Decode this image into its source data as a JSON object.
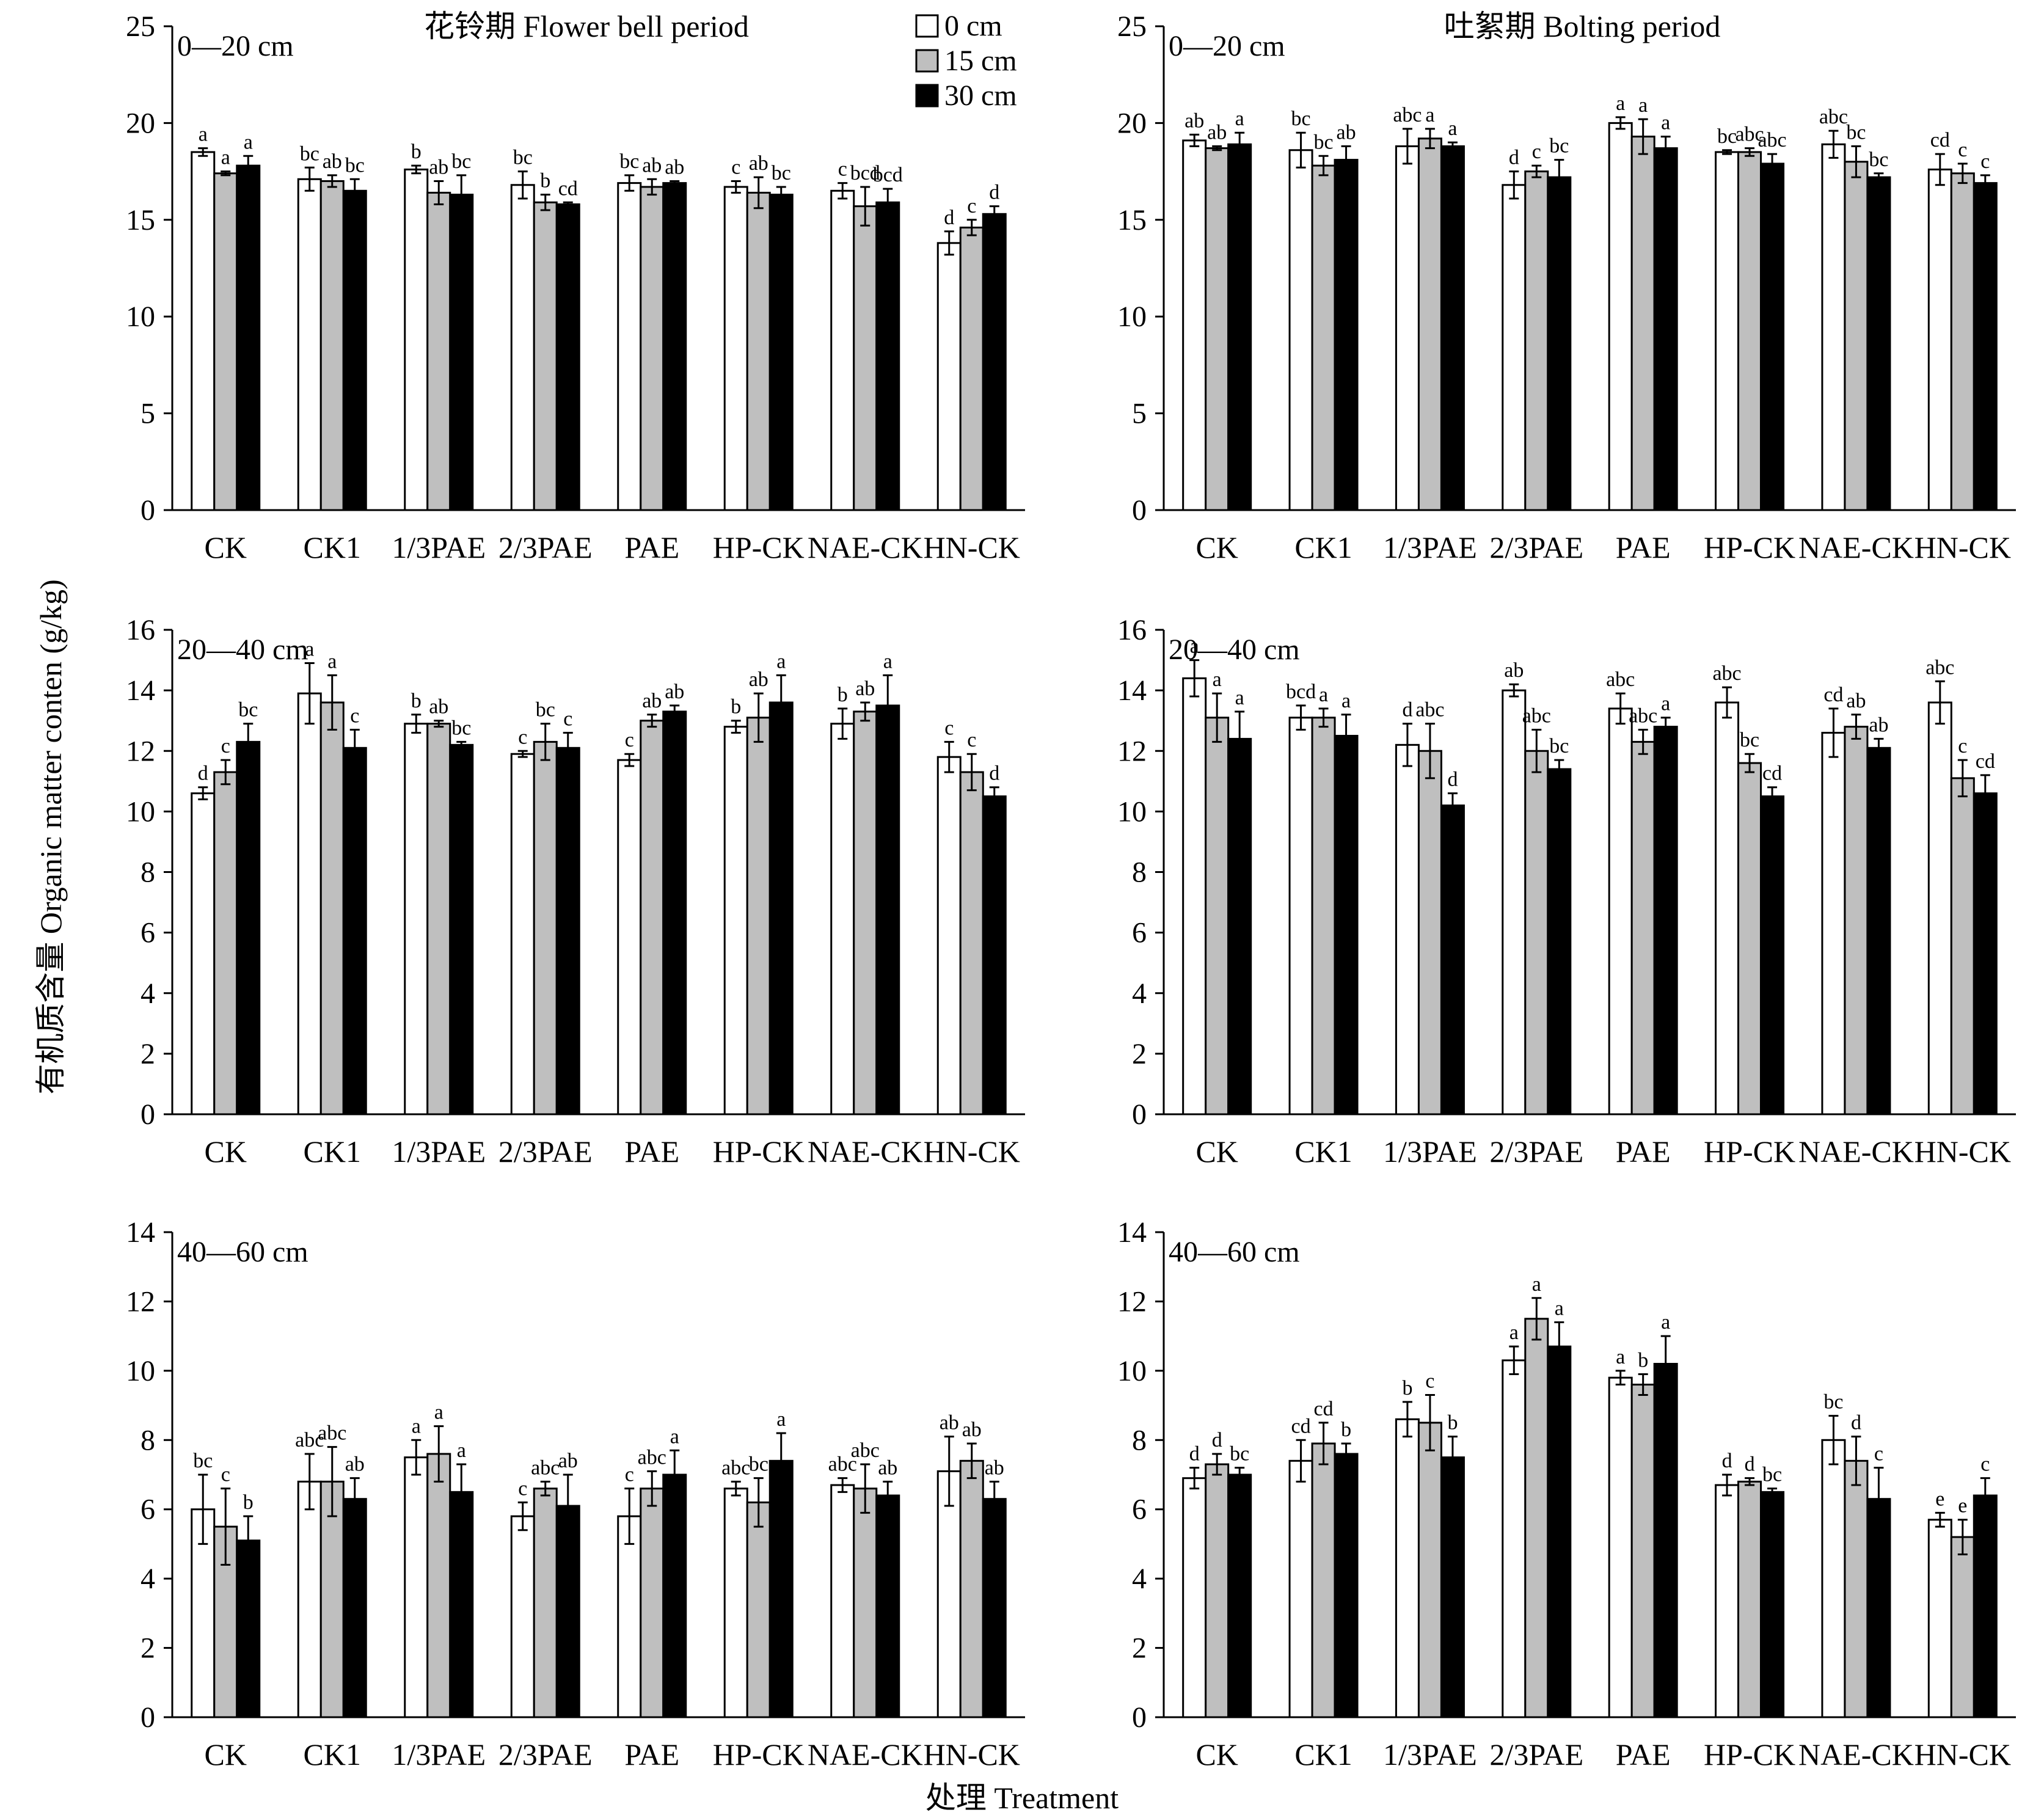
{
  "figure": {
    "ylabel": "有机质含量 Organic matter conten (g/kg)",
    "xlabel": "处理 Treatment",
    "legend": [
      "0 cm",
      "15 cm",
      "30 cm"
    ],
    "colors": {
      "0 cm": "#ffffff",
      "15 cm": "#bfbfbf",
      "30 cm": "#000000"
    }
  },
  "chart_data": [
    {
      "type": "bar",
      "title": "花铃期 Flower bell period",
      "panel_label": "0—20 cm",
      "categories": [
        "CK",
        "CK1",
        "1/3PAE",
        "2/3PAE",
        "PAE",
        "HP-CK",
        "NAE-CK",
        "HN-CK"
      ],
      "ylim": [
        0,
        25
      ],
      "yticks": [
        0,
        5,
        10,
        15,
        20,
        25
      ],
      "series": [
        {
          "name": "0 cm",
          "values": [
            18.5,
            17.1,
            17.6,
            16.8,
            16.9,
            16.7,
            16.5,
            13.8
          ],
          "errors": [
            0.2,
            0.6,
            0.2,
            0.7,
            0.4,
            0.3,
            0.4,
            0.6
          ],
          "letters": [
            "a",
            "bc",
            "b",
            "bc",
            "bc",
            "c",
            "c",
            "d"
          ]
        },
        {
          "name": "15 cm",
          "values": [
            17.4,
            17.0,
            16.4,
            15.9,
            16.7,
            16.4,
            15.7,
            14.6
          ],
          "errors": [
            0.1,
            0.3,
            0.6,
            0.4,
            0.4,
            0.8,
            1.0,
            0.4
          ],
          "letters": [
            "a",
            "ab",
            "ab",
            "b",
            "ab",
            "ab",
            "bcd",
            "c"
          ]
        },
        {
          "name": "30 cm",
          "values": [
            17.8,
            16.5,
            16.3,
            15.8,
            16.9,
            16.3,
            15.9,
            15.3
          ],
          "errors": [
            0.5,
            0.6,
            1.0,
            0.1,
            0.1,
            0.4,
            0.7,
            0.4
          ],
          "letters": [
            "a",
            "bc",
            "bc",
            "cd",
            "ab",
            "bc",
            "bcd",
            "d"
          ]
        }
      ]
    },
    {
      "type": "bar",
      "title": "吐絮期 Bolting period",
      "panel_label": "0—20 cm",
      "categories": [
        "CK",
        "CK1",
        "1/3PAE",
        "2/3PAE",
        "PAE",
        "HP-CK",
        "NAE-CK",
        "HN-CK"
      ],
      "ylim": [
        0,
        25
      ],
      "yticks": [
        0,
        5,
        10,
        15,
        20,
        25
      ],
      "series": [
        {
          "name": "0 cm",
          "values": [
            19.1,
            18.6,
            18.8,
            16.8,
            20.0,
            18.5,
            18.9,
            17.6
          ],
          "errors": [
            0.3,
            0.9,
            0.9,
            0.7,
            0.3,
            0.1,
            0.7,
            0.8
          ],
          "letters": [
            "ab",
            "bc",
            "abc",
            "d",
            "a",
            "bc",
            "abc",
            "cd"
          ]
        },
        {
          "name": "15 cm",
          "values": [
            18.7,
            17.8,
            19.2,
            17.5,
            19.3,
            18.5,
            18.0,
            17.4
          ],
          "errors": [
            0.1,
            0.5,
            0.5,
            0.3,
            0.9,
            0.2,
            0.8,
            0.5
          ],
          "letters": [
            "ab",
            "bc",
            "a",
            "c",
            "a",
            "abc",
            "bc",
            "c"
          ]
        },
        {
          "name": "30 cm",
          "values": [
            18.9,
            18.1,
            18.8,
            17.2,
            18.7,
            17.9,
            17.2,
            16.9
          ],
          "errors": [
            0.6,
            0.7,
            0.2,
            0.9,
            0.6,
            0.5,
            0.2,
            0.4
          ],
          "letters": [
            "a",
            "ab",
            "a",
            "bc",
            "a",
            "abc",
            "bc",
            "c"
          ]
        }
      ]
    },
    {
      "type": "bar",
      "title": "",
      "panel_label": "20—40 cm",
      "categories": [
        "CK",
        "CK1",
        "1/3PAE",
        "2/3PAE",
        "PAE",
        "HP-CK",
        "NAE-CK",
        "HN-CK"
      ],
      "ylim": [
        0,
        16
      ],
      "yticks": [
        0,
        2,
        4,
        6,
        8,
        10,
        12,
        14,
        16
      ],
      "series": [
        {
          "name": "0 cm",
          "values": [
            10.6,
            13.9,
            12.9,
            11.9,
            11.7,
            12.8,
            12.9,
            11.8
          ],
          "errors": [
            0.2,
            1.0,
            0.3,
            0.1,
            0.2,
            0.2,
            0.5,
            0.5
          ],
          "letters": [
            "d",
            "a",
            "b",
            "c",
            "c",
            "b",
            "b",
            "c"
          ]
        },
        {
          "name": "15 cm",
          "values": [
            11.3,
            13.6,
            12.9,
            12.3,
            13.0,
            13.1,
            13.3,
            11.3
          ],
          "errors": [
            0.4,
            0.9,
            0.1,
            0.6,
            0.2,
            0.8,
            0.3,
            0.6
          ],
          "letters": [
            "c",
            "a",
            "ab",
            "bc",
            "ab",
            "ab",
            "ab",
            "c"
          ]
        },
        {
          "name": "30 cm",
          "values": [
            12.3,
            12.1,
            12.2,
            12.1,
            13.3,
            13.6,
            13.5,
            10.5
          ],
          "errors": [
            0.6,
            0.6,
            0.1,
            0.5,
            0.2,
            0.9,
            1.0,
            0.3
          ],
          "letters": [
            "bc",
            "c",
            "bc",
            "c",
            "ab",
            "a",
            "a",
            "d"
          ]
        }
      ]
    },
    {
      "type": "bar",
      "title": "",
      "panel_label": "20—40 cm",
      "categories": [
        "CK",
        "CK1",
        "1/3PAE",
        "2/3PAE",
        "PAE",
        "HP-CK",
        "NAE-CK",
        "HN-CK"
      ],
      "ylim": [
        0,
        16
      ],
      "yticks": [
        0,
        2,
        4,
        6,
        8,
        10,
        12,
        14,
        16
      ],
      "series": [
        {
          "name": "0 cm",
          "values": [
            14.4,
            13.1,
            12.2,
            14.0,
            13.4,
            13.6,
            12.6,
            13.6
          ],
          "errors": [
            0.6,
            0.4,
            0.7,
            0.2,
            0.5,
            0.5,
            0.8,
            0.7
          ],
          "letters": [
            "a",
            "bcd",
            "d",
            "ab",
            "abc",
            "abc",
            "cd",
            "abc"
          ]
        },
        {
          "name": "15 cm",
          "values": [
            13.1,
            13.1,
            12.0,
            12.0,
            12.3,
            11.6,
            12.8,
            11.1
          ],
          "errors": [
            0.8,
            0.3,
            0.9,
            0.7,
            0.4,
            0.3,
            0.4,
            0.6
          ],
          "letters": [
            "a",
            "a",
            "abc",
            "abc",
            "abc",
            "bc",
            "ab",
            "c"
          ]
        },
        {
          "name": "30 cm",
          "values": [
            12.4,
            12.5,
            10.2,
            11.4,
            12.8,
            10.5,
            12.1,
            10.6
          ],
          "errors": [
            0.9,
            0.7,
            0.4,
            0.3,
            0.3,
            0.3,
            0.3,
            0.6
          ],
          "letters": [
            "a",
            "a",
            "d",
            "bc",
            "a",
            "cd",
            "ab",
            "cd"
          ]
        }
      ]
    },
    {
      "type": "bar",
      "title": "",
      "panel_label": "40—60 cm",
      "categories": [
        "CK",
        "CK1",
        "1/3PAE",
        "2/3PAE",
        "PAE",
        "HP-CK",
        "NAE-CK",
        "HN-CK"
      ],
      "ylim": [
        0,
        14
      ],
      "yticks": [
        0,
        2,
        4,
        6,
        8,
        10,
        12,
        14
      ],
      "series": [
        {
          "name": "0 cm",
          "values": [
            6.0,
            6.8,
            7.5,
            5.8,
            5.8,
            6.6,
            6.7,
            7.1
          ],
          "errors": [
            1.0,
            0.8,
            0.5,
            0.4,
            0.8,
            0.2,
            0.2,
            1.0
          ],
          "letters": [
            "bc",
            "abc",
            "a",
            "c",
            "c",
            "abc",
            "abc",
            "ab"
          ]
        },
        {
          "name": "15 cm",
          "values": [
            5.5,
            6.8,
            7.6,
            6.6,
            6.6,
            6.2,
            6.6,
            7.4
          ],
          "errors": [
            1.1,
            1.0,
            0.8,
            0.2,
            0.5,
            0.7,
            0.7,
            0.5
          ],
          "letters": [
            "c",
            "abc",
            "a",
            "abc",
            "abc",
            "bc",
            "abc",
            "ab"
          ]
        },
        {
          "name": "30 cm",
          "values": [
            5.1,
            6.3,
            6.5,
            6.1,
            7.0,
            7.4,
            6.4,
            6.3
          ],
          "errors": [
            0.7,
            0.6,
            0.8,
            0.9,
            0.7,
            0.8,
            0.4,
            0.5
          ],
          "letters": [
            "b",
            "ab",
            "a",
            "ab",
            "a",
            "a",
            "ab",
            "ab"
          ]
        }
      ]
    },
    {
      "type": "bar",
      "title": "",
      "panel_label": "40—60 cm",
      "categories": [
        "CK",
        "CK1",
        "1/3PAE",
        "2/3PAE",
        "PAE",
        "HP-CK",
        "NAE-CK",
        "HN-CK"
      ],
      "ylim": [
        0,
        14
      ],
      "yticks": [
        0,
        2,
        4,
        6,
        8,
        10,
        12,
        14
      ],
      "series": [
        {
          "name": "0 cm",
          "values": [
            6.9,
            7.4,
            8.6,
            10.3,
            9.8,
            6.7,
            8.0,
            5.7
          ],
          "errors": [
            0.3,
            0.6,
            0.5,
            0.4,
            0.2,
            0.3,
            0.7,
            0.2
          ],
          "letters": [
            "d",
            "cd",
            "b",
            "a",
            "a",
            "d",
            "bc",
            "e"
          ]
        },
        {
          "name": "15 cm",
          "values": [
            7.3,
            7.9,
            8.5,
            11.5,
            9.6,
            6.8,
            7.4,
            5.2
          ],
          "errors": [
            0.3,
            0.6,
            0.8,
            0.6,
            0.3,
            0.1,
            0.7,
            0.5
          ],
          "letters": [
            "d",
            "cd",
            "c",
            "a",
            "b",
            "d",
            "d",
            "e"
          ]
        },
        {
          "name": "30 cm",
          "values": [
            7.0,
            7.6,
            7.5,
            10.7,
            10.2,
            6.5,
            6.3,
            6.4
          ],
          "errors": [
            0.2,
            0.3,
            0.6,
            0.7,
            0.8,
            0.1,
            0.9,
            0.5
          ],
          "letters": [
            "bc",
            "b",
            "b",
            "a",
            "a",
            "bc",
            "c",
            "c"
          ]
        }
      ]
    }
  ]
}
